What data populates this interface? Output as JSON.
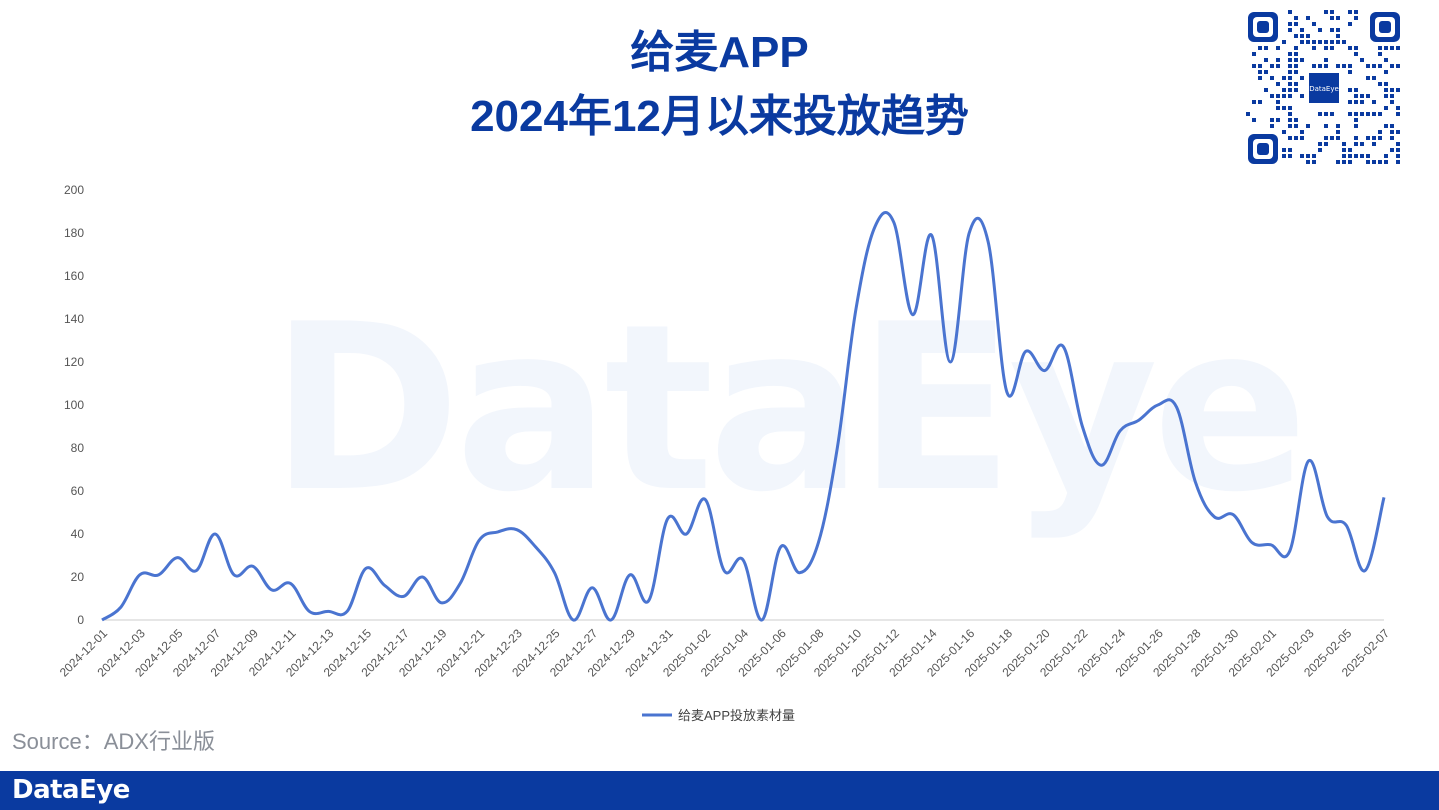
{
  "header": {
    "title_line1": "给麦APP",
    "title_line2": "2024年12月以来投放趋势"
  },
  "qr": {
    "center_label": "DataEye"
  },
  "watermark": "DataEye",
  "source": "Source：ADX行业版",
  "footer": {
    "logo": "DataEye"
  },
  "colors": {
    "accent": "#0a3aa0",
    "line": "#4a74d0",
    "axis_text": "#555555"
  },
  "chart_data": {
    "type": "line",
    "title": "给麦APP 2024年12月以来投放趋势",
    "ylim": [
      0,
      200
    ],
    "yticks": [
      0,
      20,
      40,
      60,
      80,
      100,
      120,
      140,
      160,
      180,
      200
    ],
    "xtick_labels": [
      "2024-12-01",
      "2024-12-03",
      "2024-12-05",
      "2024-12-07",
      "2024-12-09",
      "2024-12-11",
      "2024-12-13",
      "2024-12-15",
      "2024-12-17",
      "2024-12-19",
      "2024-12-21",
      "2024-12-23",
      "2024-12-25",
      "2024-12-27",
      "2024-12-29",
      "2024-12-31",
      "2025-01-02",
      "2025-01-04",
      "2025-01-06",
      "2025-01-08",
      "2025-01-10",
      "2025-01-12",
      "2025-01-14",
      "2025-01-16",
      "2025-01-18",
      "2025-01-20",
      "2025-01-22",
      "2025-01-24",
      "2025-01-26",
      "2025-01-28",
      "2025-01-30",
      "2025-02-01",
      "2025-02-03",
      "2025-02-05",
      "2025-02-07"
    ],
    "legend": "bottom-center",
    "series": [
      {
        "name": "给麦APP投放素材量",
        "values": [
          0,
          6,
          21,
          21,
          29,
          23,
          40,
          21,
          25,
          14,
          17,
          4,
          4,
          4,
          24,
          16,
          11,
          20,
          8,
          17,
          37,
          41,
          42,
          34,
          22,
          0,
          15,
          0,
          21,
          9,
          47,
          40,
          56,
          23,
          28,
          0,
          34,
          22,
          36,
          80,
          145,
          183,
          185,
          142,
          179,
          120,
          180,
          176,
          106,
          125,
          116,
          127,
          90,
          72,
          88,
          93,
          100,
          99,
          64,
          48,
          49,
          36,
          35,
          32,
          74,
          48,
          44,
          23,
          57
        ]
      }
    ]
  }
}
